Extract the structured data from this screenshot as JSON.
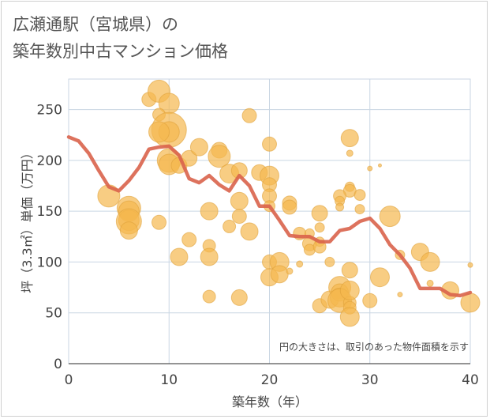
{
  "chart_data": {
    "type": "scatter",
    "title_lines": [
      "広瀬通駅（宮城県）の",
      "築年数別中古マンション価格"
    ],
    "xlabel": "築年数（年）",
    "ylabel": "坪（3.3㎡）単価（万円）",
    "note": "円の大きさは、取引のあった物件面積を示す",
    "xlim": [
      0,
      40
    ],
    "ylim": [
      0,
      280
    ],
    "xticks": [
      0,
      10,
      20,
      30,
      40
    ],
    "yticks": [
      0,
      50,
      100,
      150,
      200,
      250
    ],
    "grid": true,
    "colors": {
      "bubble": "#f5b84f",
      "bubble_edge": "#e0a23a",
      "line": "#d9634b",
      "grid": "#c9d6e3"
    },
    "series": [
      {
        "kind": "bubbles",
        "points": [
          {
            "x": 8,
            "y": 260,
            "s": 9
          },
          {
            "x": 9,
            "y": 268,
            "s": 14
          },
          {
            "x": 10,
            "y": 256,
            "s": 13
          },
          {
            "x": 9,
            "y": 245,
            "s": 8
          },
          {
            "x": 10,
            "y": 230,
            "s": 22
          },
          {
            "x": 10,
            "y": 228,
            "s": 13
          },
          {
            "x": 9,
            "y": 228,
            "s": 13
          },
          {
            "x": 10,
            "y": 200,
            "s": 15
          },
          {
            "x": 10,
            "y": 196,
            "s": 13
          },
          {
            "x": 11,
            "y": 195,
            "s": 10
          },
          {
            "x": 12,
            "y": 202,
            "s": 10
          },
          {
            "x": 13,
            "y": 213,
            "s": 11
          },
          {
            "x": 15,
            "y": 210,
            "s": 10
          },
          {
            "x": 15,
            "y": 204,
            "s": 14
          },
          {
            "x": 16,
            "y": 187,
            "s": 12
          },
          {
            "x": 17,
            "y": 190,
            "s": 10
          },
          {
            "x": 18,
            "y": 244,
            "s": 9
          },
          {
            "x": 19,
            "y": 188,
            "s": 10
          },
          {
            "x": 20,
            "y": 216,
            "s": 9
          },
          {
            "x": 20,
            "y": 185,
            "s": 12
          },
          {
            "x": 20,
            "y": 176,
            "s": 9
          },
          {
            "x": 20,
            "y": 165,
            "s": 9
          },
          {
            "x": 4,
            "y": 165,
            "s": 14
          },
          {
            "x": 6,
            "y": 153,
            "s": 15
          },
          {
            "x": 6,
            "y": 150,
            "s": 13
          },
          {
            "x": 6,
            "y": 141,
            "s": 13
          },
          {
            "x": 6,
            "y": 140,
            "s": 16
          },
          {
            "x": 6,
            "y": 131,
            "s": 11
          },
          {
            "x": 9,
            "y": 139,
            "s": 9
          },
          {
            "x": 14,
            "y": 150,
            "s": 11
          },
          {
            "x": 16,
            "y": 135,
            "s": 8
          },
          {
            "x": 17,
            "y": 160,
            "s": 11
          },
          {
            "x": 17,
            "y": 145,
            "s": 9
          },
          {
            "x": 18,
            "y": 130,
            "s": 11
          },
          {
            "x": 12,
            "y": 122,
            "s": 9
          },
          {
            "x": 11,
            "y": 105,
            "s": 11
          },
          {
            "x": 14,
            "y": 116,
            "s": 8
          },
          {
            "x": 14,
            "y": 105,
            "s": 11
          },
          {
            "x": 14,
            "y": 66,
            "s": 8
          },
          {
            "x": 17,
            "y": 65,
            "s": 10
          },
          {
            "x": 22,
            "y": 158,
            "s": 9
          },
          {
            "x": 22,
            "y": 154,
            "s": 9
          },
          {
            "x": 23,
            "y": 128,
            "s": 8
          },
          {
            "x": 24,
            "y": 128,
            "s": 6
          },
          {
            "x": 24,
            "y": 118,
            "s": 9
          },
          {
            "x": 24,
            "y": 112,
            "s": 7
          },
          {
            "x": 25,
            "y": 148,
            "s": 10
          },
          {
            "x": 25,
            "y": 134,
            "s": 6
          },
          {
            "x": 25,
            "y": 120,
            "s": 6
          },
          {
            "x": 25,
            "y": 115,
            "s": 8
          },
          {
            "x": 26,
            "y": 100,
            "s": 6
          },
          {
            "x": 25,
            "y": 57,
            "s": 9
          },
          {
            "x": 26,
            "y": 63,
            "s": 11
          },
          {
            "x": 27,
            "y": 75,
            "s": 14
          },
          {
            "x": 27,
            "y": 70,
            "s": 11
          },
          {
            "x": 27,
            "y": 65,
            "s": 12
          },
          {
            "x": 27,
            "y": 62,
            "s": 15
          },
          {
            "x": 28,
            "y": 60,
            "s": 8
          },
          {
            "x": 28,
            "y": 55,
            "s": 8
          },
          {
            "x": 28,
            "y": 92,
            "s": 10
          },
          {
            "x": 28,
            "y": 72,
            "s": 12
          },
          {
            "x": 28,
            "y": 46,
            "s": 12
          },
          {
            "x": 28,
            "y": 222,
            "s": 11
          },
          {
            "x": 28,
            "y": 207,
            "s": 4
          },
          {
            "x": 28,
            "y": 174,
            "s": 6
          },
          {
            "x": 28,
            "y": 170,
            "s": 8
          },
          {
            "x": 27,
            "y": 165,
            "s": 8
          },
          {
            "x": 27,
            "y": 160,
            "s": 6
          },
          {
            "x": 27,
            "y": 154,
            "s": 5
          },
          {
            "x": 29,
            "y": 152,
            "s": 6
          },
          {
            "x": 29,
            "y": 166,
            "s": 7
          },
          {
            "x": 30,
            "y": 192,
            "s": 3
          },
          {
            "x": 31,
            "y": 195,
            "s": 2
          },
          {
            "x": 30,
            "y": 62,
            "s": 9
          },
          {
            "x": 31,
            "y": 85,
            "s": 12
          },
          {
            "x": 32,
            "y": 145,
            "s": 13
          },
          {
            "x": 33,
            "y": 68,
            "s": 3
          },
          {
            "x": 33,
            "y": 107,
            "s": 6
          },
          {
            "x": 35,
            "y": 110,
            "s": 11
          },
          {
            "x": 36,
            "y": 100,
            "s": 12
          },
          {
            "x": 36,
            "y": 79,
            "s": 4
          },
          {
            "x": 38,
            "y": 72,
            "s": 11
          },
          {
            "x": 40,
            "y": 97,
            "s": 3
          },
          {
            "x": 40,
            "y": 60,
            "s": 12
          },
          {
            "x": 20,
            "y": 100,
            "s": 9
          },
          {
            "x": 20,
            "y": 85,
            "s": 11
          },
          {
            "x": 21,
            "y": 100,
            "s": 12
          },
          {
            "x": 21,
            "y": 88,
            "s": 11
          },
          {
            "x": 20,
            "y": 155,
            "s": 7
          },
          {
            "x": 22,
            "y": 91,
            "s": 4
          },
          {
            "x": 23,
            "y": 98,
            "s": 4
          }
        ]
      },
      {
        "kind": "line",
        "x": [
          0,
          1,
          2,
          3,
          4,
          5,
          6,
          7,
          8,
          9,
          10,
          11,
          12,
          13,
          14,
          15,
          16,
          17,
          18,
          19,
          20,
          21,
          22,
          23,
          24,
          25,
          26,
          27,
          28,
          29,
          30,
          31,
          32,
          33,
          34,
          35,
          36,
          37,
          38,
          39,
          40
        ],
        "y": [
          223,
          219,
          207,
          190,
          174,
          170,
          180,
          193,
          211,
          213,
          214,
          205,
          182,
          178,
          185,
          176,
          170,
          185,
          175,
          155,
          155,
          141,
          126,
          125,
          125,
          120,
          120,
          131,
          133,
          140,
          143,
          133,
          117,
          107,
          94,
          74,
          74,
          74,
          68,
          67,
          70
        ]
      }
    ]
  }
}
